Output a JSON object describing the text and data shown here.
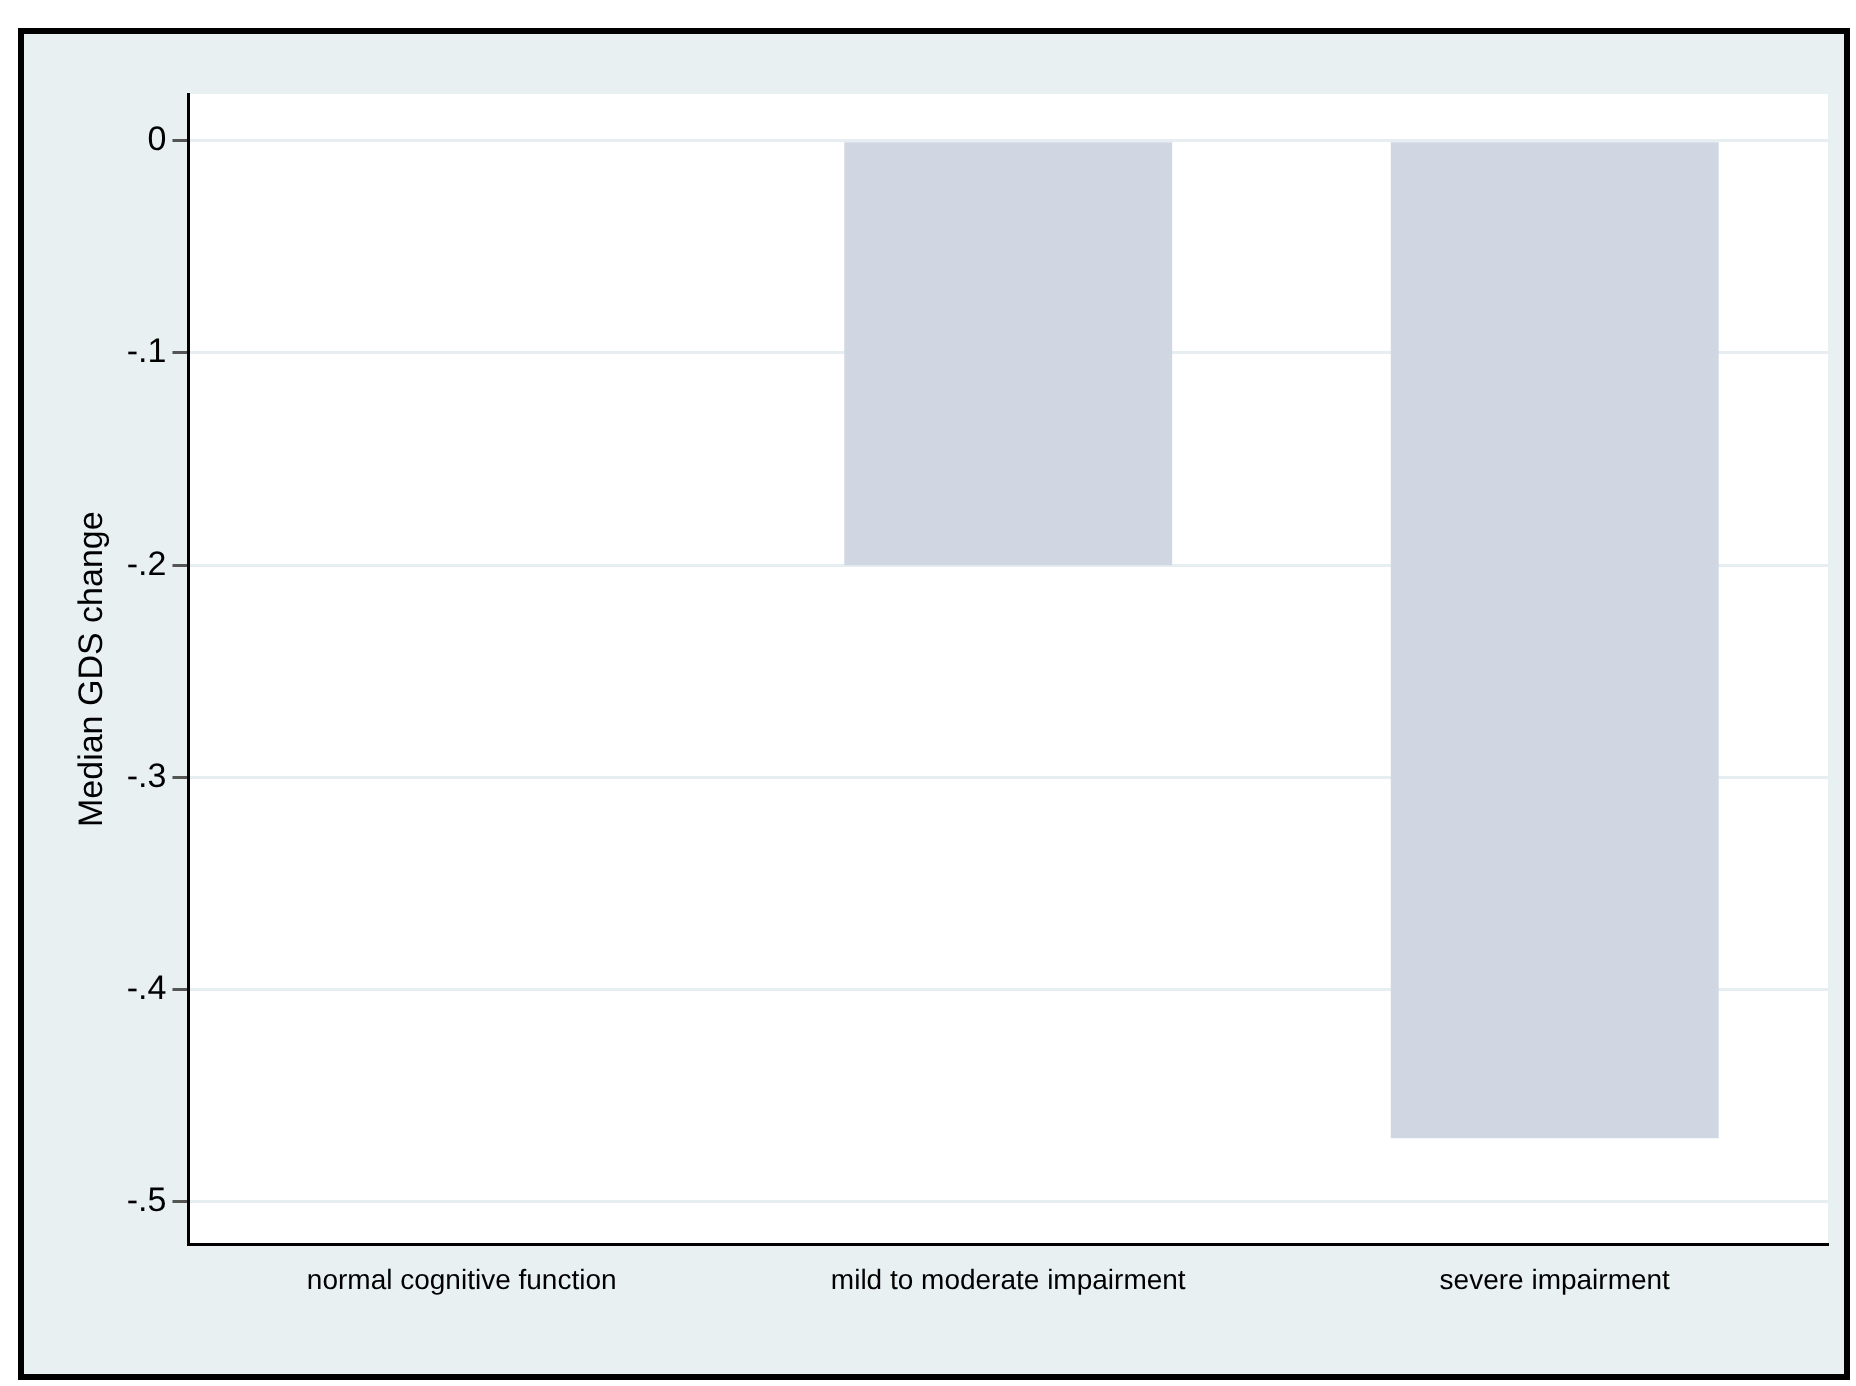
{
  "chart_data": {
    "type": "bar",
    "ylabel": "Median GDS change",
    "categories": [
      "normal cognitive function",
      "mild to moderate impairment",
      "severe impairment"
    ],
    "values": [
      0,
      -0.2,
      -0.47
    ],
    "color": "#d0d7e2",
    "ylim": [
      -0.52,
      0.022
    ],
    "yticks": [
      {
        "value": 0,
        "label": "0"
      },
      {
        "value": -0.1,
        "label": "-.1"
      },
      {
        "value": -0.2,
        "label": "-.2"
      },
      {
        "value": -0.3,
        "label": "-.3"
      },
      {
        "value": -0.4,
        "label": "-.4"
      },
      {
        "value": -0.5,
        "label": "-.5"
      }
    ],
    "grid": "y",
    "legend": false
  }
}
